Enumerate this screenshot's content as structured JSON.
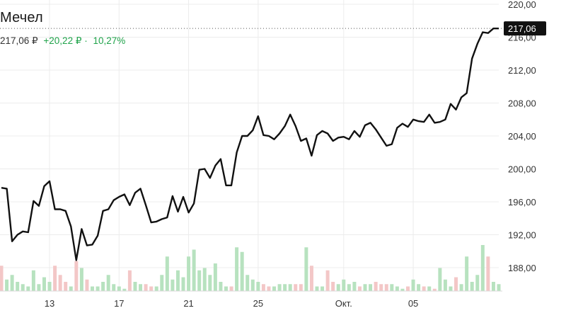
{
  "header": {
    "ticker": "Мечел",
    "price": "217,06 ₽",
    "change": "+20,22 ₽",
    "separator": "·",
    "change_pct": "10,27%"
  },
  "colors": {
    "line": "#111111",
    "up_volume": "#b7e2bf",
    "down_volume": "#f3c7c7",
    "grid": "#ececec",
    "last_label_bg": "#111111",
    "positive": "#1fa34a"
  },
  "chart_data": {
    "type": "line",
    "title": "",
    "xlabel": "",
    "ylabel": "",
    "ylim": [
      184.5,
      221.5
    ],
    "y_ticks": [
      "220,00",
      "216,00",
      "212,00",
      "208,00",
      "204,00",
      "200,00",
      "196,00",
      "192,00",
      "188,00"
    ],
    "y_tick_values": [
      220,
      216,
      212,
      208,
      204,
      200,
      196,
      192,
      188
    ],
    "x_ticks": [
      "13",
      "17",
      "21",
      "25",
      "Окт.",
      "05"
    ],
    "x_tick_index": [
      9,
      22,
      35,
      48,
      64,
      77
    ],
    "last_value": 217.06,
    "last_value_label": "217,06",
    "price": [
      197.7,
      197.6,
      191.2,
      192.0,
      192.4,
      192.3,
      196.1,
      195.5,
      197.9,
      198.5,
      195.1,
      195.1,
      194.9,
      193.0,
      188.9,
      192.7,
      190.7,
      190.8,
      191.9,
      194.9,
      195.1,
      196.2,
      196.6,
      196.9,
      195.6,
      197.1,
      197.6,
      195.6,
      193.5,
      193.6,
      193.9,
      194.1,
      196.7,
      194.8,
      196.6,
      194.7,
      195.8,
      199.9,
      200.0,
      198.9,
      200.4,
      201.2,
      198.0,
      198.0,
      202.0,
      204.0,
      204.0,
      204.7,
      206.4,
      204.1,
      204.0,
      203.6,
      204.3,
      205.2,
      206.6,
      205.2,
      203.4,
      203.7,
      201.6,
      204.1,
      204.6,
      204.3,
      203.4,
      203.8,
      203.9,
      203.6,
      204.6,
      203.9,
      205.3,
      205.6,
      204.8,
      203.8,
      202.8,
      203.0,
      205.0,
      205.5,
      205.1,
      206.0,
      205.8,
      205.7,
      206.6,
      205.6,
      205.7,
      206.0,
      207.9,
      207.2,
      208.7,
      209.2,
      213.4,
      215.2,
      216.6,
      216.5,
      217.06,
      217.06
    ],
    "volume_up": [
      false,
      true,
      true,
      true,
      true,
      true,
      true,
      true,
      true,
      true,
      false,
      false,
      false,
      true,
      false,
      true,
      false,
      true,
      true,
      true,
      true,
      true,
      true,
      true,
      false,
      true,
      true,
      false,
      false,
      true,
      true,
      true,
      true,
      true,
      true,
      true,
      true,
      true,
      true,
      true,
      true,
      true,
      true,
      false,
      true,
      true,
      true,
      true,
      true,
      false,
      false,
      true,
      true,
      true,
      true,
      false,
      false,
      true,
      false,
      true,
      true,
      false,
      false,
      true,
      true,
      true,
      true,
      false,
      true,
      true,
      false,
      false,
      false,
      true,
      true,
      true,
      false,
      true,
      true,
      false,
      true,
      false,
      true,
      true,
      true,
      false,
      true,
      true,
      true,
      true,
      true,
      false,
      true,
      true
    ],
    "volume": [
      0.55,
      0.25,
      0.35,
      0.2,
      0.15,
      0.1,
      0.45,
      0.15,
      0.3,
      0.2,
      0.55,
      0.35,
      0.2,
      0.1,
      0.65,
      0.5,
      0.25,
      0.1,
      0.1,
      0.2,
      0.35,
      0.15,
      0.1,
      0.05,
      0.45,
      0.2,
      0.15,
      0.15,
      0.1,
      0.1,
      0.35,
      0.75,
      0.25,
      0.45,
      0.3,
      0.75,
      0.9,
      0.45,
      0.5,
      0.35,
      0.6,
      0.2,
      0.1,
      0.1,
      0.95,
      0.85,
      0.35,
      0.25,
      0.2,
      0.15,
      0.1,
      0.1,
      0.15,
      0.15,
      0.15,
      0.15,
      0.15,
      0.95,
      0.55,
      0.1,
      0.1,
      0.45,
      0.2,
      0.15,
      0.25,
      0.15,
      0.2,
      0.1,
      0.15,
      0.15,
      0.2,
      0.15,
      0.15,
      0.15,
      0.1,
      0.05,
      0.1,
      0.25,
      0.15,
      0.1,
      0.1,
      0.05,
      0.5,
      0.25,
      0.1,
      0.3,
      0.15,
      0.75,
      0.2,
      0.35,
      1.0,
      0.75,
      0.2,
      0.15
    ]
  }
}
